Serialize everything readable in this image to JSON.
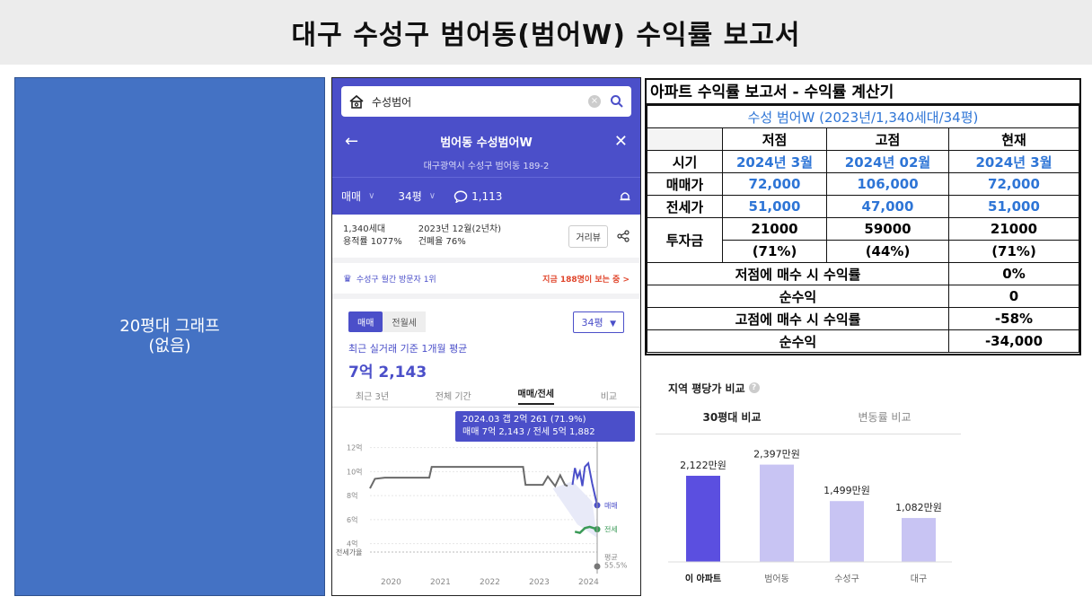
{
  "title": "대구 수성구 범어동(범어W) 수익률 보고서",
  "left_panel": {
    "line1": "20평대 그래프",
    "line2": "(없음)"
  },
  "phone": {
    "search_text": "수성범어",
    "nav_title": "범어동 수성범어W",
    "address": "대구광역시 수성구 범어동 189-2",
    "filter_type": "매매",
    "filter_size": "34평",
    "comments": "1,113",
    "info": {
      "households": "1,340세대",
      "far": "용적률 1077%",
      "built": "2023년 12월(2년차)",
      "bcr": "건폐율 76%",
      "street_view": "거리뷰"
    },
    "rank_text": "수성구 월간 방문자 1위",
    "hot_text": "지금 188명이 보는 중 >",
    "tab_sale": "매매",
    "tab_rent": "전월세",
    "size_select": "34평",
    "avg_label": "최근 실거래 기준 1개월 평균",
    "avg_value": "7억 2,143",
    "chart_tabs": [
      "최근 3년",
      "전체 기간",
      "매매/전세",
      "비교"
    ],
    "tooltip_line1": "2024.03  갭 2억 261 (71.9%)",
    "tooltip_line2": "매매 7억 2,143 / 전세 5억 1,882"
  },
  "chart_data": [
    {
      "type": "line",
      "y_ticks": [
        "12억",
        "10억",
        "8억",
        "6억",
        "4억"
      ],
      "x_ticks": [
        "2020",
        "2021",
        "2022",
        "2023",
        "2024"
      ],
      "ylim": [
        3,
        12.5
      ],
      "series": [
        {
          "name": "매매",
          "color": "#6a6a6a",
          "points": [
            [
              2019.6,
              8.6
            ],
            [
              2019.7,
              9.4
            ],
            [
              2019.9,
              9.5
            ],
            [
              2020.8,
              9.5
            ],
            [
              2020.85,
              10.4
            ],
            [
              2022.7,
              10.4
            ],
            [
              2022.75,
              8.9
            ],
            [
              2023.1,
              8.9
            ],
            [
              2023.2,
              9.6
            ],
            [
              2023.35,
              8.8
            ],
            [
              2023.45,
              9.7
            ],
            [
              2023.55,
              8.9
            ],
            [
              2023.6,
              8.8
            ]
          ]
        },
        {
          "name": "매매",
          "color": "#4b4fc9",
          "points": [
            [
              2023.7,
              8.9
            ],
            [
              2023.75,
              10.3
            ],
            [
              2023.8,
              9.5
            ],
            [
              2023.85,
              10.0
            ],
            [
              2023.9,
              8.8
            ],
            [
              2023.95,
              10.4
            ],
            [
              2024.02,
              10.7
            ],
            [
              2024.1,
              9.0
            ],
            [
              2024.2,
              7.2
            ]
          ]
        },
        {
          "name": "전세",
          "color": "#3a9a57",
          "points": [
            [
              2023.75,
              5.0
            ],
            [
              2023.85,
              4.9
            ],
            [
              2023.95,
              5.3
            ],
            [
              2024.05,
              5.4
            ],
            [
              2024.2,
              5.2
            ]
          ]
        }
      ],
      "end_labels": [
        "매매",
        "전세"
      ],
      "ratio_label": "전세가율",
      "ratio_end": [
        "평균",
        "55.5%"
      ]
    },
    {
      "type": "bar",
      "categories": [
        "이 아파트",
        "범어동",
        "수성구",
        "대구"
      ],
      "values": [
        2122,
        2397,
        1499,
        1082
      ],
      "labels": [
        "2,122만원",
        "2,397만원",
        "1,499만원",
        "1,082만원"
      ],
      "colors": [
        "#5b4fe0",
        "#c8c4f3",
        "#c8c4f3",
        "#c8c4f3"
      ],
      "ylim": [
        0,
        2600
      ]
    }
  ],
  "calc": {
    "header": "아파트 수익률 보고서 - 수익률 계산기",
    "subtitle": "수성 범어W (2023년/1,340세대/34평)",
    "col_low": "저점",
    "col_high": "고점",
    "col_now": "현재",
    "rows": {
      "time": {
        "label": "시기",
        "low": "2024년 3월",
        "high": "2024년 02월",
        "now": "2024년 3월"
      },
      "sale": {
        "label": "매매가",
        "low": "72,000",
        "high": "106,000",
        "now": "72,000"
      },
      "jeonse": {
        "label": "전세가",
        "low": "51,000",
        "high": "47,000",
        "now": "51,000"
      },
      "invest": {
        "label": "투자금",
        "low": "21000",
        "low2": "(71%)",
        "high": "59000",
        "high2": "(44%)",
        "now": "21000",
        "now2": "(71%)"
      }
    },
    "buy_low_label": "저점에 매수 시 수익률",
    "buy_low_value": "0%",
    "net1_label": "순수익",
    "net1_value": "0",
    "buy_high_label": "고점에 매수 시 수익률",
    "buy_high_value": "-58%",
    "net2_label": "순수익",
    "net2_value": "-34,000"
  },
  "region": {
    "title": "지역 평당가 비교",
    "tab1": "30평대 비교",
    "tab2": "변동률 비교"
  }
}
